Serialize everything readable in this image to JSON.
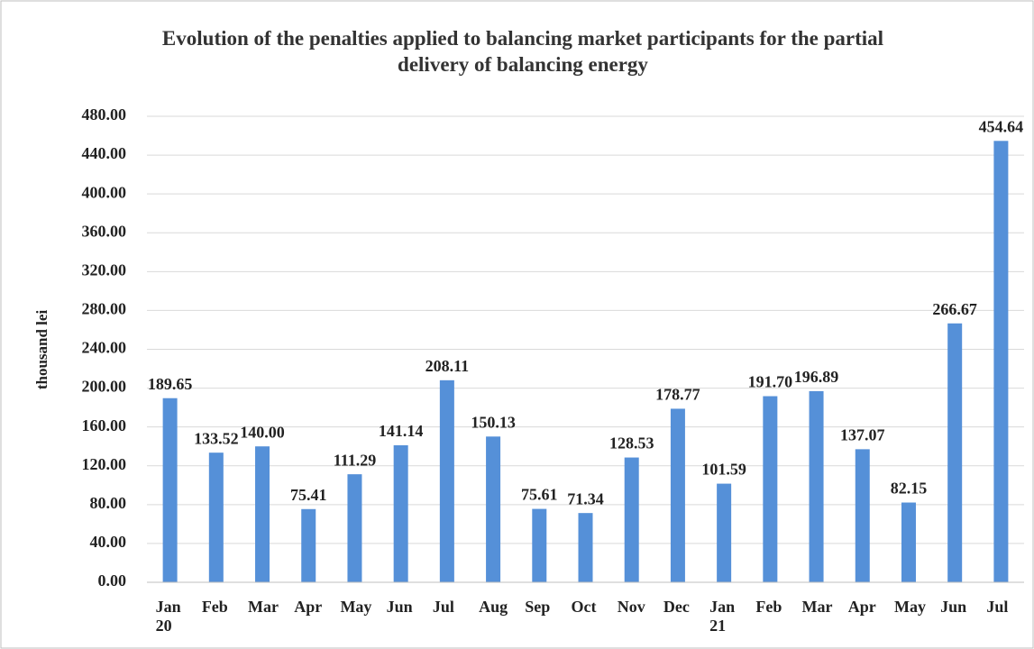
{
  "chart_data": {
    "type": "bar",
    "title": "Evolution of the penalties applied to balancing market participants for the partial delivery of balancing energy",
    "y_label": "thousand lei",
    "categories": [
      "Jan 20",
      "Feb",
      "Mar",
      "Apr",
      "May",
      "Jun",
      "Jul",
      "Aug",
      "Sep",
      "Oct",
      "Nov",
      "Dec",
      "Jan 21",
      "Feb",
      "Mar",
      "Apr",
      "May",
      "Jun",
      "Jul"
    ],
    "values": [
      189.65,
      133.52,
      140.0,
      75.41,
      111.29,
      141.14,
      208.11,
      150.13,
      75.61,
      71.34,
      128.53,
      178.77,
      101.59,
      191.7,
      196.89,
      137.07,
      82.15,
      266.67,
      454.64
    ],
    "value_labels": [
      "189.65",
      "133.52",
      "140.00",
      "75.41",
      "111.29",
      "141.14",
      "208.11",
      "150.13",
      "75.61",
      "71.34",
      "128.53",
      "178.77",
      "101.59",
      "191.70",
      "196.89",
      "137.07",
      "82.15",
      "266.67",
      "454.64"
    ],
    "color": "#5590d8",
    "ylim": [
      0,
      480
    ],
    "yticks": [
      {
        "value": 0,
        "label": "0.00"
      },
      {
        "value": 40,
        "label": "40.00"
      },
      {
        "value": 80,
        "label": "80.00"
      },
      {
        "value": 120,
        "label": "120.00"
      },
      {
        "value": 160,
        "label": "160.00"
      },
      {
        "value": 200,
        "label": "200.00"
      },
      {
        "value": 240,
        "label": "240.00"
      },
      {
        "value": 280,
        "label": "280.00"
      },
      {
        "value": 320,
        "label": "320.00"
      },
      {
        "value": 360,
        "label": "360.00"
      },
      {
        "value": 400,
        "label": "400.00"
      },
      {
        "value": 440,
        "label": "440.00"
      },
      {
        "value": 480,
        "label": "480.00"
      }
    ],
    "grid": true
  }
}
